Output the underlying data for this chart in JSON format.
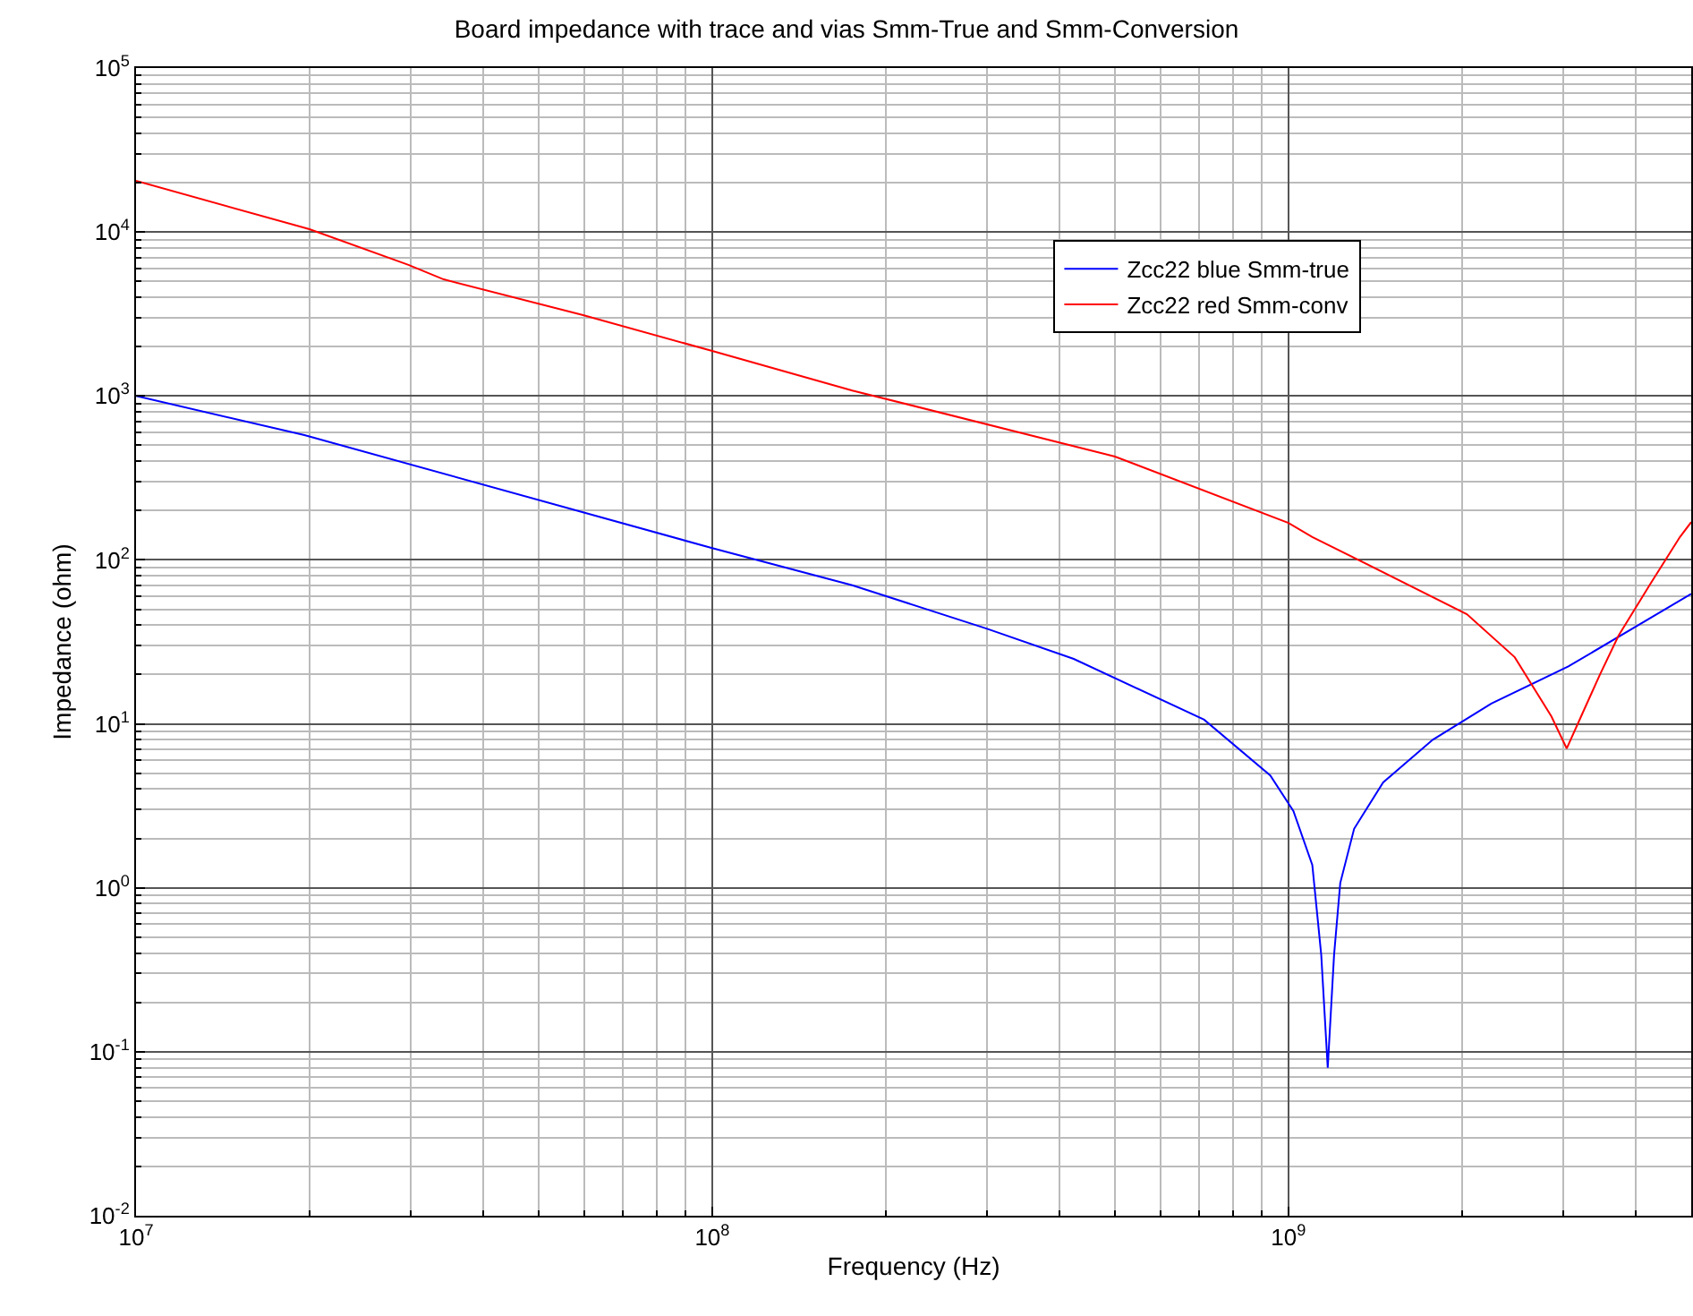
{
  "chart_data": {
    "type": "line",
    "title": "Board impedance with trace and vias Smm-True and Smm-Conversion",
    "xlabel": "Frequency (Hz)",
    "ylabel": "Impedance (ohm)",
    "log": "xy",
    "grid": true,
    "legend": "top right",
    "marker": "none",
    "line_style": "solid",
    "xlim": [
      10000000,
      5000000000
    ],
    "ylim": [
      0.01,
      100000
    ],
    "xticks": [
      {
        "value": 10000000,
        "label": "10$^{7}$"
      },
      {
        "value": 100000000,
        "label": "10$^{8}$"
      },
      {
        "value": 1000000000,
        "label": "10$^{9}$"
      }
    ],
    "yticks": [
      {
        "value": 0.01,
        "label": "10$^{-2}$"
      },
      {
        "value": 0.1,
        "label": "10$^{-1}$"
      },
      {
        "value": 1,
        "label": "10$^{0}$"
      },
      {
        "value": 10,
        "label": "10$^{1}$"
      },
      {
        "value": 100,
        "label": "10$^{2}$"
      },
      {
        "value": 1000,
        "label": "10$^{3}$"
      },
      {
        "value": 10000,
        "label": "10$^{4}$"
      },
      {
        "value": 100000,
        "label": "10$^{5}$"
      }
    ],
    "series": [
      {
        "name": "Zcc22 blue Smm-true",
        "color": "#0000ff",
        "x": [
          10000000,
          19600000,
          100000000,
          175000000,
          300000000,
          424000000,
          714000000,
          930000000,
          1020000000,
          1100000000,
          1140000000,
          1170000000,
          1200000000,
          1230000000,
          1300000000,
          1460000000,
          1780000000,
          2250000000,
          3060000000,
          5000000000
        ],
        "values": [
          1000,
          577,
          118,
          70,
          38,
          24.9,
          10.6,
          4.85,
          2.94,
          1.38,
          0.39,
          0.08,
          0.39,
          1.07,
          2.29,
          4.4,
          8,
          13.3,
          22.4,
          62
        ]
      },
      {
        "name": "Zcc22 red Smm-conv",
        "color": "#ff0000",
        "x": [
          10000000,
          20000000,
          29700000,
          34200000,
          59700000,
          100000000,
          175000000,
          500000000,
          1000000000,
          1100000000,
          2040000000,
          2470000000,
          2860000000,
          3040000000,
          3220000000,
          3470000000,
          3740000000,
          4230000000,
          4780000000,
          5000000000
        ],
        "values": [
          20500,
          10400,
          6300,
          5140,
          3110,
          1880,
          1080,
          427,
          168,
          138,
          46.7,
          25.5,
          11.1,
          7.08,
          11.1,
          19.9,
          34.5,
          69.8,
          138,
          170
        ]
      }
    ]
  }
}
